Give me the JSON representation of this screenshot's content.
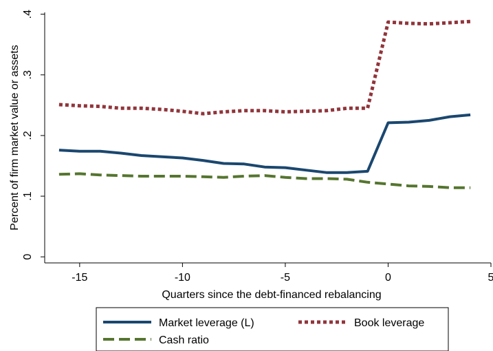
{
  "chart_data": {
    "type": "line",
    "xlabel": "Quarters since the debt-financed rebalancing",
    "ylabel": "Percent of firm market value or assets",
    "xlim": [
      -16.7,
      5
    ],
    "ylim": [
      -0.01,
      0.403
    ],
    "x_ticks": [
      -15,
      -10,
      -5,
      0,
      5
    ],
    "x_tick_labels": [
      "-15",
      "-10",
      "-5",
      "0",
      "5"
    ],
    "y_ticks": [
      0,
      0.1,
      0.2,
      0.3,
      0.4
    ],
    "y_tick_labels": [
      "0",
      ".1",
      ".2",
      ".3",
      ".4"
    ],
    "grid": false,
    "legend_position": "bottom",
    "x": [
      -16,
      -15,
      -14,
      -13,
      -12,
      -11,
      -10,
      -9,
      -8,
      -7,
      -6,
      -5,
      -4,
      -3,
      -2,
      -1,
      0,
      1,
      2,
      3,
      4
    ],
    "series": [
      {
        "name": "Market leverage (L)",
        "color": "#1a476f",
        "style": "solid",
        "values": [
          0.176,
          0.174,
          0.174,
          0.171,
          0.167,
          0.165,
          0.163,
          0.159,
          0.154,
          0.153,
          0.148,
          0.147,
          0.143,
          0.139,
          0.139,
          0.141,
          0.221,
          0.222,
          0.225,
          0.231,
          0.234
        ]
      },
      {
        "name": "Book leverage",
        "color": "#90353b",
        "style": "dotted",
        "values": [
          0.251,
          0.249,
          0.248,
          0.245,
          0.245,
          0.243,
          0.24,
          0.236,
          0.239,
          0.241,
          0.241,
          0.239,
          0.24,
          0.241,
          0.245,
          0.245,
          0.387,
          0.385,
          0.384,
          0.386,
          0.388
        ]
      },
      {
        "name": "Cash ratio",
        "color": "#55752f",
        "style": "dashed",
        "values": [
          0.136,
          0.137,
          0.135,
          0.134,
          0.133,
          0.133,
          0.133,
          0.132,
          0.131,
          0.133,
          0.134,
          0.131,
          0.129,
          0.129,
          0.128,
          0.123,
          0.12,
          0.117,
          0.116,
          0.114,
          0.114
        ]
      }
    ]
  }
}
